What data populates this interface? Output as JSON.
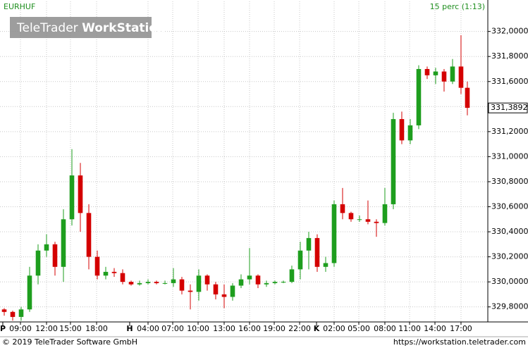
{
  "chart_data": {
    "type": "candlestick",
    "title": "EURHUF",
    "subtitle": "15 perc (1:13)",
    "watermark": [
      "TeleTrader",
      "WorkStation"
    ],
    "up_color": "#1e9e1e",
    "down_color": "#d40000",
    "grid": true,
    "x": [
      0.5,
      1.5,
      2.5,
      3.5,
      4.5,
      5.5,
      6.5,
      7.5,
      8.5,
      9.5,
      10.5,
      11.5,
      12.5,
      13.5,
      14.5,
      15.5,
      16.5,
      17.5,
      18.5,
      19.5,
      20.5,
      21.5,
      22.5,
      23.5,
      24.5,
      25.5,
      26.5,
      27.5,
      28.5,
      29.5,
      30.5,
      31.5,
      32.5,
      33.5,
      34.5,
      35.5,
      36.5,
      37.5,
      38.5,
      39.5,
      40.5,
      41.5,
      42.5,
      43.5,
      44.5,
      45.5,
      46.5,
      47.5,
      48.5,
      49.5,
      50.5,
      51.5,
      52.5,
      53.5,
      54.5,
      55.25
    ],
    "open": [
      329.78,
      329.76,
      329.72,
      329.78,
      330.05,
      330.25,
      330.3,
      330.12,
      330.5,
      330.85,
      330.55,
      330.2,
      330.05,
      330.08,
      330.07,
      330.0,
      329.98,
      329.99,
      330.0,
      329.99,
      329.99,
      330.02,
      329.93,
      329.92,
      330.05,
      329.98,
      329.9,
      329.88,
      329.97,
      330.02,
      330.05,
      329.98,
      329.99,
      330.0,
      330.0,
      330.1,
      330.25,
      330.35,
      330.12,
      330.15,
      330.62,
      330.55,
      330.5,
      330.5,
      330.48,
      330.47,
      330.62,
      331.3,
      331.13,
      331.25,
      331.7,
      331.65,
      331.68,
      331.6,
      331.72,
      331.55
    ],
    "high": [
      329.79,
      329.77,
      329.8,
      330.12,
      330.3,
      330.38,
      330.32,
      330.58,
      331.06,
      330.95,
      330.62,
      330.25,
      330.12,
      330.11,
      330.1,
      330.01,
      330.01,
      330.02,
      330.01,
      330.01,
      330.11,
      330.04,
      329.98,
      330.1,
      330.06,
      330.0,
      329.98,
      329.99,
      330.06,
      330.27,
      330.06,
      330.01,
      330.01,
      330.01,
      330.13,
      330.32,
      330.4,
      330.38,
      330.2,
      330.65,
      330.75,
      330.56,
      330.53,
      330.65,
      330.5,
      330.75,
      331.35,
      331.36,
      331.3,
      331.73,
      331.72,
      331.71,
      331.7,
      331.78,
      331.97,
      331.6
    ],
    "low": [
      329.73,
      329.69,
      329.69,
      329.76,
      329.98,
      330.2,
      330.05,
      330.0,
      330.45,
      330.4,
      330.1,
      330.02,
      330.02,
      330.04,
      329.98,
      329.97,
      329.97,
      329.98,
      329.98,
      329.98,
      329.96,
      329.9,
      329.78,
      329.85,
      329.93,
      329.86,
      329.79,
      329.85,
      329.95,
      329.98,
      329.95,
      329.96,
      329.98,
      329.99,
      329.99,
      330.02,
      330.1,
      330.08,
      330.08,
      330.12,
      330.5,
      330.48,
      330.48,
      330.46,
      330.36,
      330.45,
      330.58,
      331.1,
      331.1,
      331.22,
      331.62,
      331.58,
      331.52,
      331.58,
      331.5,
      331.33
    ],
    "close": [
      329.76,
      329.72,
      329.78,
      330.05,
      330.25,
      330.3,
      330.12,
      330.5,
      330.85,
      330.55,
      330.2,
      330.05,
      330.08,
      330.07,
      330.0,
      329.98,
      329.99,
      330.0,
      329.99,
      329.99,
      330.02,
      329.93,
      329.92,
      330.05,
      329.98,
      329.9,
      329.88,
      329.97,
      330.02,
      330.05,
      329.98,
      329.99,
      330.0,
      330.0,
      330.1,
      330.25,
      330.35,
      330.12,
      330.15,
      330.62,
      330.55,
      330.5,
      330.5,
      330.48,
      330.47,
      330.62,
      331.3,
      331.13,
      331.25,
      331.7,
      331.65,
      331.68,
      331.6,
      331.72,
      331.55,
      331.39
    ],
    "last_price": {
      "value": 331.3892,
      "label": "331,3892"
    },
    "xlim": [
      0,
      57.67
    ],
    "xticks": [
      {
        "value": 2.42,
        "label": "09:00"
      },
      {
        "value": 5.5,
        "label": "12:00"
      },
      {
        "value": 8.33,
        "label": "15:00"
      },
      {
        "value": 11.42,
        "label": "18:00"
      },
      {
        "value": 17.5,
        "label": "04:00"
      },
      {
        "value": 20.42,
        "label": "07:00"
      },
      {
        "value": 23.42,
        "label": "10:00"
      },
      {
        "value": 26.5,
        "label": "13:00"
      },
      {
        "value": 29.5,
        "label": "16:00"
      },
      {
        "value": 32.42,
        "label": "19:00"
      },
      {
        "value": 35.42,
        "label": "22:00"
      },
      {
        "value": 39.5,
        "label": "02:00"
      },
      {
        "value": 42.42,
        "label": "05:00"
      },
      {
        "value": 45.5,
        "label": "08:00"
      },
      {
        "value": 48.42,
        "label": "11:00"
      },
      {
        "value": 51.42,
        "label": "14:00"
      },
      {
        "value": 54.5,
        "label": "17:00"
      }
    ],
    "day_ticks": [
      {
        "value": 0.33,
        "label": "P"
      },
      {
        "value": 15.33,
        "label": "H"
      },
      {
        "value": 37.42,
        "label": "K"
      }
    ],
    "ylim": [
      329.68,
      332.24
    ],
    "yticks": [
      {
        "value": 329.8,
        "label": "329,8000"
      },
      {
        "value": 330.0,
        "label": "330,0000"
      },
      {
        "value": 330.2,
        "label": "330,2000"
      },
      {
        "value": 330.4,
        "label": "330,4000"
      },
      {
        "value": 330.6,
        "label": "330,6000"
      },
      {
        "value": 330.8,
        "label": "330,8000"
      },
      {
        "value": 331.0,
        "label": "331,0000"
      },
      {
        "value": 331.2,
        "label": "331,2000"
      },
      {
        "value": 331.4,
        "label": "331,4000"
      },
      {
        "value": 331.6,
        "label": "331,6000"
      },
      {
        "value": 331.8,
        "label": "331,8000"
      },
      {
        "value": 332.0,
        "label": "332,0000"
      }
    ]
  },
  "footer": {
    "copyright": "© 2019 TeleTrader Software GmbH",
    "url": "https://workstation.teletrader.com"
  }
}
